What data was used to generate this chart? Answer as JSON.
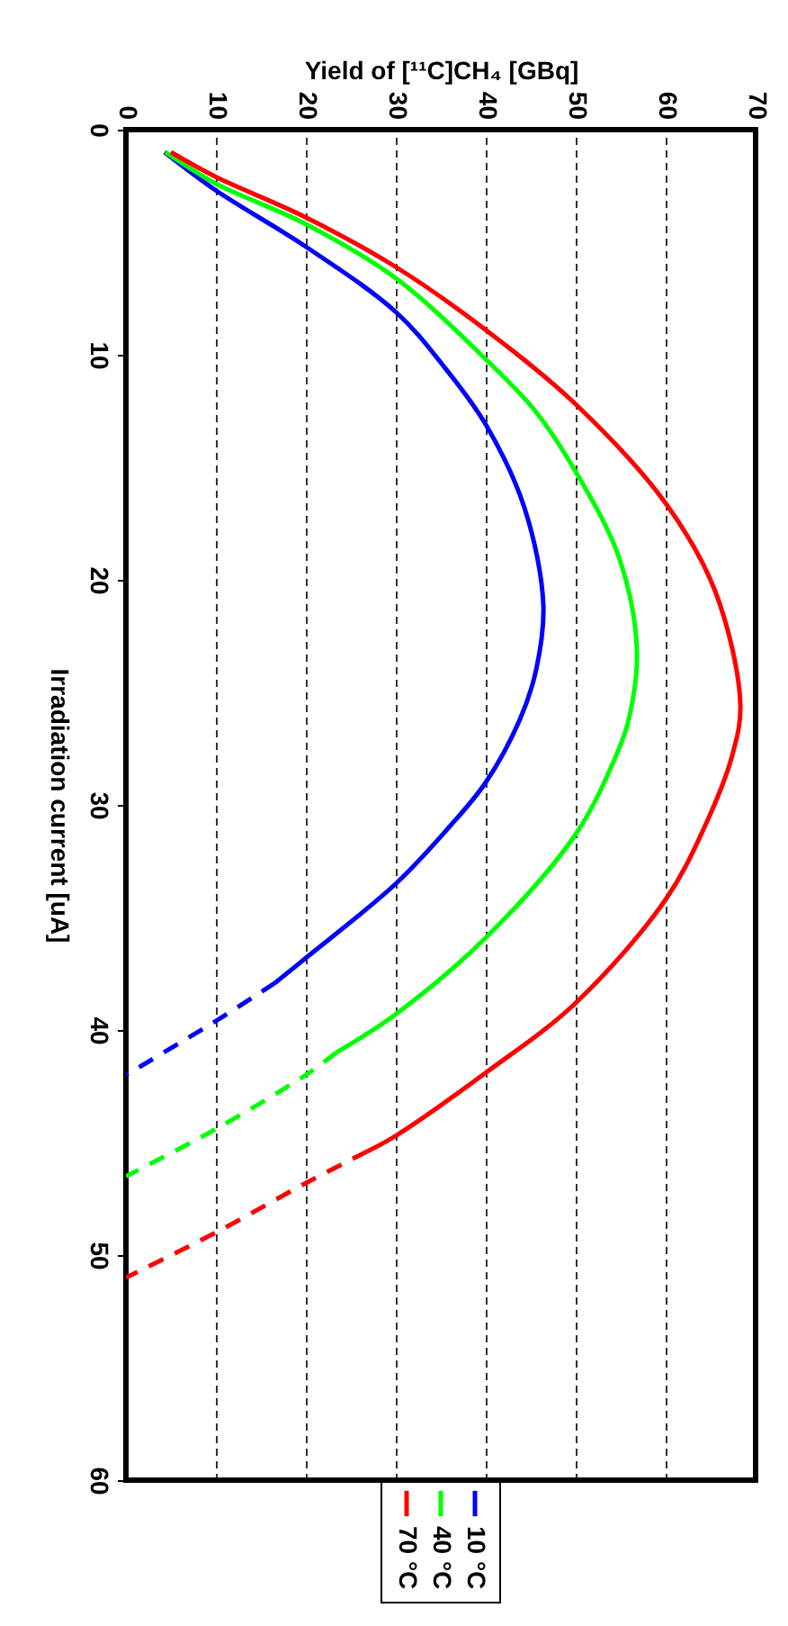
{
  "chart_data": {
    "type": "line",
    "xlabel": "Yield of [¹¹C]CH₄ [GBq]",
    "ylabel": "Irradiation current [uA]",
    "xlim": [
      0,
      70
    ],
    "xticks": [
      0,
      10,
      20,
      30,
      40,
      50,
      60,
      70
    ],
    "ylim": [
      60,
      0
    ],
    "yticks": [
      0,
      10,
      20,
      30,
      40,
      50,
      60
    ],
    "grid": "x",
    "legend": "bottom",
    "marker": "none",
    "series": [
      {
        "name": "10 °C",
        "color": "#0000ff",
        "line_style": "solid",
        "x": [
          4.3,
          10,
          20,
          30,
          35.3,
          40,
          44.3,
          46.4,
          45.6,
          43.8,
          40,
          35.9,
          30,
          20,
          16.6
        ],
        "values": [
          1,
          2.7,
          5.2,
          8.1,
          10.5,
          13.1,
          16.8,
          21.1,
          24,
          26.2,
          29,
          31,
          33.5,
          36.8,
          37.9
        ]
      },
      {
        "name": "40 °C",
        "color": "#00ff00",
        "line_style": "solid",
        "x": [
          4.4,
          10,
          20,
          30,
          40,
          45.5,
          50,
          54.8,
          56.8,
          55.9,
          54.5,
          50,
          40,
          30,
          23.4
        ],
        "values": [
          1,
          2.4,
          4.2,
          6.6,
          10.2,
          12.5,
          15.2,
          19,
          23.1,
          26.2,
          27.8,
          31.3,
          35.9,
          39.3,
          41
        ]
      },
      {
        "name": "70 °C",
        "color": "#ff0000",
        "line_style": "solid",
        "x": [
          5,
          10,
          20,
          30,
          40,
          50,
          60,
          65.5,
          68.3,
          67.4,
          64.3,
          60,
          50,
          40,
          30,
          26.8
        ],
        "values": [
          1,
          2.1,
          3.9,
          6.1,
          8.9,
          12.2,
          16.6,
          20.5,
          25.5,
          27.8,
          31,
          34.2,
          38.8,
          41.9,
          44.7,
          45.4
        ]
      },
      {
        "color": "#0000ff",
        "line_style": "dashed",
        "x": [
          16.6,
          10,
          0
        ],
        "values": [
          37.9,
          39.6,
          42
        ]
      },
      {
        "color": "#00ff00",
        "line_style": "dashed",
        "x": [
          23.4,
          20,
          10,
          0
        ],
        "values": [
          41,
          42,
          44.4,
          46.5
        ]
      },
      {
        "color": "#ff0000",
        "line_style": "dashed",
        "x": [
          26.8,
          20,
          10,
          0
        ],
        "values": [
          45.4,
          46.8,
          49,
          51
        ]
      }
    ]
  }
}
